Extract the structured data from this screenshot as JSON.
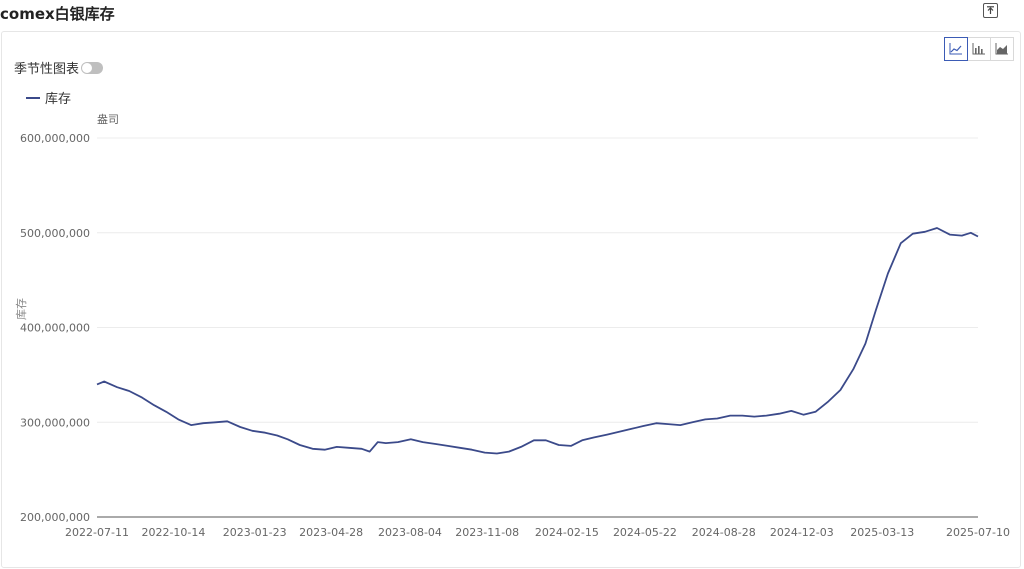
{
  "header": {
    "title": "comex白银库存",
    "export_icon": "export-icon"
  },
  "controls": {
    "seasonal_label": "季节性图表",
    "seasonal_on": false,
    "chart_type_buttons": [
      "line-chart-icon",
      "bar-chart-icon",
      "area-chart-icon"
    ],
    "active_type": "line"
  },
  "colors": {
    "series": "#3b4a8a",
    "active": "#3b5bb5",
    "grid": "#ececec"
  },
  "chart_data": {
    "type": "line",
    "title": "",
    "unit_label": "盎司",
    "ylabel": "库存",
    "ylim": [
      200000000,
      600000000
    ],
    "yticks": [
      200000000,
      300000000,
      400000000,
      500000000,
      600000000
    ],
    "ytick_labels": [
      "200,000,000",
      "300,000,000",
      "400,000,000",
      "500,000,000",
      "600,000,000"
    ],
    "xticks": [
      "2022-07-11",
      "2022-10-14",
      "2023-01-23",
      "2023-04-28",
      "2023-08-04",
      "2023-11-08",
      "2024-02-15",
      "2024-05-22",
      "2024-08-28",
      "2024-12-03",
      "2025-03-13",
      "2025-07-10"
    ],
    "legend": "top-left",
    "grid": true,
    "series": [
      {
        "name": "库存",
        "x": [
          "2022-07-11",
          "2022-07-20",
          "2022-08-05",
          "2022-08-20",
          "2022-09-05",
          "2022-09-20",
          "2022-10-05",
          "2022-10-20",
          "2022-11-05",
          "2022-11-20",
          "2022-12-05",
          "2022-12-20",
          "2023-01-05",
          "2023-01-20",
          "2023-02-05",
          "2023-02-20",
          "2023-03-05",
          "2023-03-20",
          "2023-04-05",
          "2023-04-20",
          "2023-05-05",
          "2023-05-20",
          "2023-06-05",
          "2023-06-15",
          "2023-06-25",
          "2023-07-05",
          "2023-07-20",
          "2023-08-05",
          "2023-08-20",
          "2023-09-05",
          "2023-09-20",
          "2023-10-05",
          "2023-10-20",
          "2023-11-05",
          "2023-11-20",
          "2023-12-05",
          "2023-12-20",
          "2024-01-05",
          "2024-01-20",
          "2024-02-05",
          "2024-02-20",
          "2024-03-05",
          "2024-03-20",
          "2024-04-05",
          "2024-04-20",
          "2024-05-05",
          "2024-05-20",
          "2024-06-05",
          "2024-06-20",
          "2024-07-05",
          "2024-07-20",
          "2024-08-05",
          "2024-08-20",
          "2024-09-05",
          "2024-09-20",
          "2024-10-05",
          "2024-10-20",
          "2024-11-05",
          "2024-11-20",
          "2024-12-05",
          "2024-12-20",
          "2025-01-05",
          "2025-01-20",
          "2025-02-05",
          "2025-02-20",
          "2025-03-05",
          "2025-03-20",
          "2025-04-05",
          "2025-04-20",
          "2025-05-05",
          "2025-05-20",
          "2025-06-05",
          "2025-06-20",
          "2025-07-01",
          "2025-07-10"
        ],
        "values": [
          340000000,
          343000000,
          337000000,
          333000000,
          326000000,
          318000000,
          311000000,
          303000000,
          297000000,
          299000000,
          300000000,
          301000000,
          295000000,
          291000000,
          289000000,
          286000000,
          282000000,
          276000000,
          272000000,
          271000000,
          274000000,
          273000000,
          272000000,
          269000000,
          279000000,
          278000000,
          279000000,
          282000000,
          279000000,
          277000000,
          275000000,
          273000000,
          271000000,
          268000000,
          267000000,
          269000000,
          274000000,
          281000000,
          281000000,
          276000000,
          275000000,
          281000000,
          284000000,
          287000000,
          290000000,
          293000000,
          296000000,
          299000000,
          298000000,
          297000000,
          300000000,
          303000000,
          304000000,
          307000000,
          307000000,
          306000000,
          307000000,
          309000000,
          312000000,
          308000000,
          311000000,
          322000000,
          334000000,
          356000000,
          383000000,
          418000000,
          457000000,
          489000000,
          499000000,
          501000000,
          505000000,
          498000000,
          497000000,
          500000000,
          496000000
        ]
      }
    ]
  }
}
